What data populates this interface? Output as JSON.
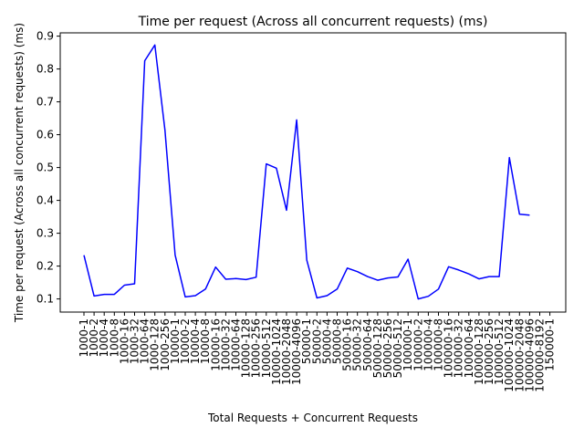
{
  "chart_data": {
    "type": "line",
    "title": "Time per request (Across all concurrent requests) (ms)",
    "xlabel": "Total Requests + Concurrent Requests",
    "ylabel": "Time per request (Across all concurrent requests) (ms)",
    "ylim": [
      0.06,
      0.91
    ],
    "yticks": [
      0.1,
      0.2,
      0.3,
      0.4,
      0.5,
      0.6,
      0.7,
      0.8,
      0.9
    ],
    "line_color": "#0000ff",
    "grid": false,
    "categories": [
      "1000-1",
      "1000-2",
      "1000-4",
      "1000-8",
      "1000-16",
      "1000-32",
      "1000-64",
      "1000-128",
      "1000-256",
      "10000-1",
      "10000-2",
      "10000-4",
      "10000-8",
      "10000-16",
      "10000-32",
      "10000-64",
      "10000-128",
      "10000-256",
      "10000-512",
      "10000-1024",
      "10000-2048",
      "10000-4096",
      "50000-1",
      "50000-2",
      "50000-4",
      "50000-8",
      "50000-16",
      "50000-32",
      "50000-64",
      "50000-128",
      "50000-256",
      "50000-512",
      "100000-1",
      "100000-2",
      "100000-4",
      "100000-8",
      "100000-16",
      "100000-32",
      "100000-64",
      "100000-128",
      "100000-256",
      "100000-512",
      "100000-1024",
      "100000-2048",
      "100000-4096",
      "100000-8192",
      "150000-1"
    ],
    "series": [
      {
        "values": [
          0.233,
          0.109,
          0.114,
          0.114,
          0.142,
          0.146,
          0.825,
          0.873,
          0.613,
          0.234,
          0.106,
          0.11,
          0.13,
          0.197,
          0.16,
          0.162,
          0.159,
          0.166,
          0.511,
          0.498,
          0.37,
          0.645,
          0.218,
          0.103,
          0.11,
          0.13,
          0.194,
          0.183,
          0.168,
          0.157,
          0.164,
          0.167,
          0.221,
          0.1,
          0.108,
          0.13,
          0.198,
          0.188,
          0.176,
          0.161,
          0.168,
          0.168,
          0.53,
          0.358,
          0.355,
          null,
          null
        ]
      }
    ]
  }
}
